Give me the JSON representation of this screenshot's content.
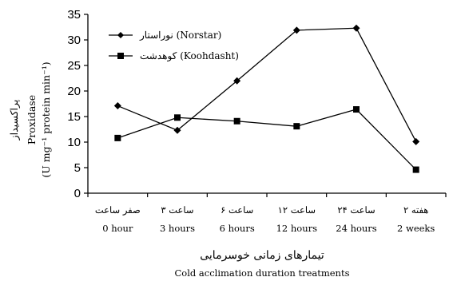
{
  "chart_data": {
    "type": "line",
    "categories_fa": [
      "صفر ساعت",
      "۳ ساعت",
      "۶ ساعت",
      "۱۲ ساعت",
      "۲۴ ساعت",
      "۲ هفته"
    ],
    "categories_en": [
      "0 hour",
      "3 hours",
      "6 hours",
      "12 hours",
      "24 hours",
      "2 weeks"
    ],
    "series": [
      {
        "name": "نوراستار (Norstar)",
        "marker": "diamond",
        "values": [
          17.1,
          12.3,
          22.0,
          31.9,
          32.3,
          10.1
        ]
      },
      {
        "name": "کوهدشت (Koohdasht)",
        "marker": "square",
        "values": [
          10.8,
          14.8,
          14.1,
          13.1,
          16.4,
          4.6
        ]
      }
    ],
    "y_ticks": [
      "0",
      "5",
      "10",
      "15",
      "20",
      "25",
      "30",
      "35"
    ],
    "ylim": [
      0,
      35
    ],
    "ylabel_fa": "پراکسیداز",
    "ylabel_en": "Proxidase",
    "ylabel_unit": "(U mg⁻¹ protein min⁻¹)",
    "xlabel_fa": "تیمارهای زمانی خوسرمایی",
    "xlabel_en": "Cold acclimation duration treatments",
    "legend_position": "top-left",
    "grid": false
  }
}
